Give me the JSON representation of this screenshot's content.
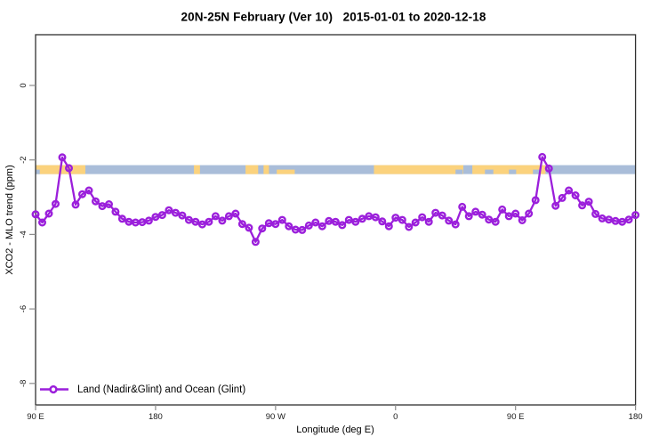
{
  "figure": {
    "title": "20N-25N February (Ver 10)   2015-01-01 to 2020-12-18",
    "xlabel": "Longitude (deg E)",
    "ylabel": "XCO2 - MLO trend (ppm)",
    "legend_label": "Land (Nadir&Glint) and Ocean (Glint)"
  },
  "chart_data": {
    "type": "line",
    "title": "20N-25N February (Ver 10)   2015-01-01 to 2020-12-18",
    "xlabel": "Longitude (deg E)",
    "ylabel": "XCO2 - MLO trend (ppm)",
    "x_axis": {
      "tick_labels": [
        "90 E",
        "180",
        "90 W",
        "0",
        "90 E",
        "180"
      ],
      "tick_lons": [
        90,
        180,
        270,
        360,
        450,
        540
      ],
      "lon_start": 90,
      "lon_end": 540,
      "note": "longitude wraps eastward from 90E around the globe to 180"
    },
    "y_axis": {
      "tick_labels": [
        "0",
        "-2",
        "-4",
        "-6",
        "-8"
      ],
      "tick_values": [
        0,
        -2,
        -4,
        -6,
        -8
      ],
      "ylim": [
        -8.6,
        1.36
      ],
      "grid": false,
      "labels_rotated": true
    },
    "legend": {
      "position": "bottom-left",
      "label": "Land (Nadir&Glint) and Ocean (Glint)"
    },
    "series": [
      {
        "name": "Land (Nadir&Glint) and Ocean (Glint)",
        "color": "#9B1FDB",
        "marker": "open-circle",
        "lon_start": 90,
        "lon_step": 5,
        "values": [
          -3.46,
          -3.68,
          -3.44,
          -3.18,
          -1.93,
          -2.22,
          -3.2,
          -2.92,
          -2.82,
          -3.11,
          -3.24,
          -3.19,
          -3.39,
          -3.58,
          -3.66,
          -3.68,
          -3.67,
          -3.63,
          -3.53,
          -3.48,
          -3.35,
          -3.42,
          -3.49,
          -3.61,
          -3.66,
          -3.73,
          -3.66,
          -3.51,
          -3.63,
          -3.51,
          -3.44,
          -3.72,
          -3.82,
          -4.2,
          -3.84,
          -3.7,
          -3.72,
          -3.61,
          -3.78,
          -3.87,
          -3.88,
          -3.76,
          -3.68,
          -3.78,
          -3.64,
          -3.66,
          -3.75,
          -3.61,
          -3.66,
          -3.58,
          -3.51,
          -3.54,
          -3.65,
          -3.78,
          -3.55,
          -3.61,
          -3.8,
          -3.68,
          -3.54,
          -3.66,
          -3.42,
          -3.49,
          -3.63,
          -3.73,
          -3.26,
          -3.51,
          -3.39,
          -3.47,
          -3.6,
          -3.66,
          -3.33,
          -3.51,
          -3.44,
          -3.62,
          -3.44,
          -3.08,
          -1.92,
          -2.23,
          -3.23,
          -3.02,
          -2.82,
          -2.95,
          -3.22,
          -3.12,
          -3.45,
          -3.57,
          -3.6,
          -3.64,
          -3.66,
          -3.6,
          -3.48
        ]
      }
    ],
    "map_band": {
      "description": "coastline strip for 20N-25N latitude band drawn across plot",
      "value_top": -2.14,
      "value_bottom": -2.38,
      "ocean_color": "#A9BDD9",
      "land_color": "#FBD27D",
      "land_segments_frac": [
        [
          0.001,
          0.083
        ],
        [
          0.264,
          0.274
        ],
        [
          0.35,
          0.371
        ],
        [
          0.38,
          0.389
        ],
        [
          0.402,
          0.432
        ],
        [
          0.564,
          0.713
        ],
        [
          0.728,
          0.85
        ]
      ],
      "thin_segment_indices": [
        4
      ],
      "ocean_notches_frac": [
        [
          0.0,
          0.007
        ],
        [
          0.7,
          0.712
        ],
        [
          0.749,
          0.763
        ],
        [
          0.789,
          0.801
        ],
        [
          0.829,
          0.84
        ]
      ]
    }
  }
}
